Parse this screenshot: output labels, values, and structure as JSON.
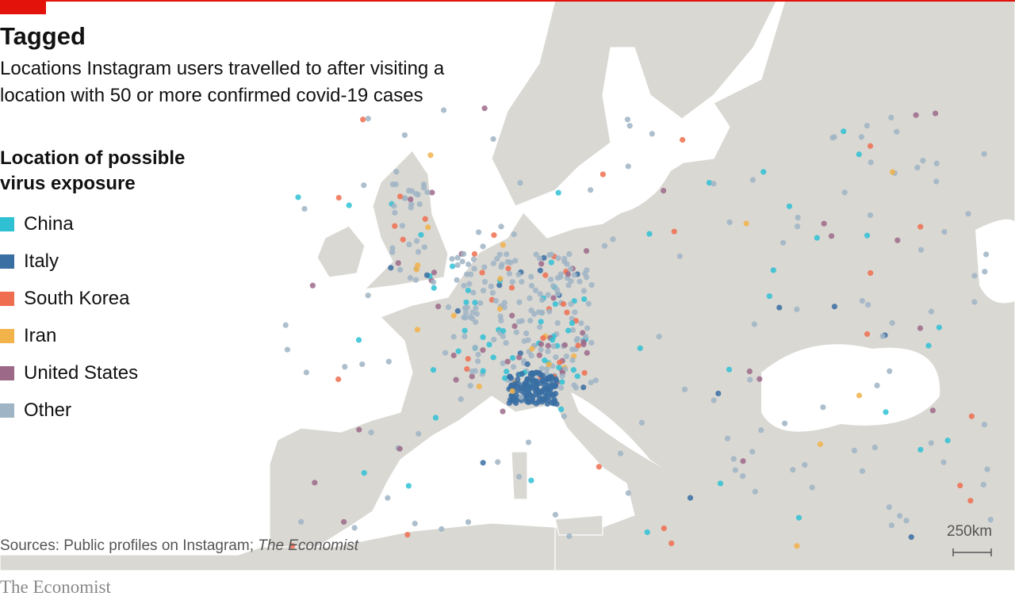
{
  "header": {
    "title": "Tagged",
    "subtitle": "Locations Instagram users travelled to after visiting a location with 50 or more confirmed covid-19 cases"
  },
  "legend": {
    "title": "Location of possible virus exposure",
    "items": [
      {
        "label": "China",
        "color": "#2fc1d3"
      },
      {
        "label": "Italy",
        "color": "#3a6fa3"
      },
      {
        "label": "South Korea",
        "color": "#ee6e4f"
      },
      {
        "label": "Iran",
        "color": "#f2b34a"
      },
      {
        "label": "United States",
        "color": "#9c6a88"
      },
      {
        "label": "Other",
        "color": "#9fb4c4"
      }
    ]
  },
  "source": {
    "text": "Sources: Public profiles on Instagram;",
    "italic": "The Economist"
  },
  "scale": {
    "label": "250km"
  },
  "brand": "The Economist"
}
